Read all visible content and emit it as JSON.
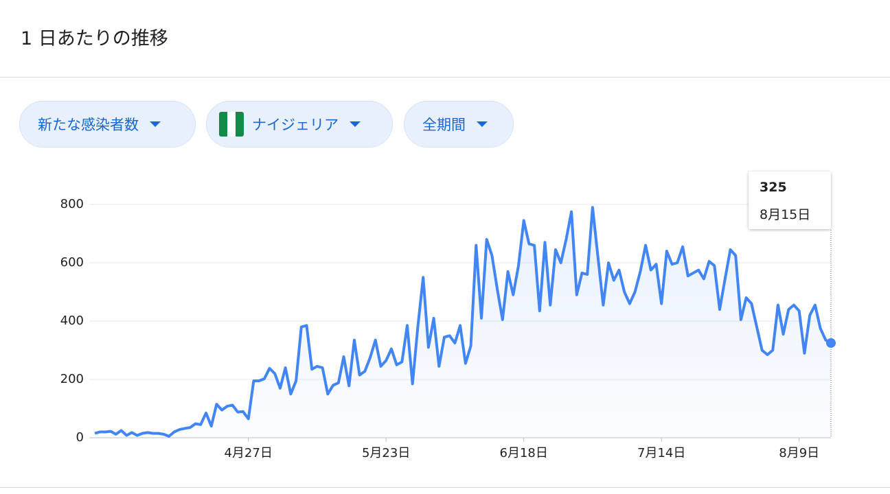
{
  "header": {
    "title": "1 日あたりの推移"
  },
  "filters": [
    {
      "label": "新たな感染者数"
    },
    {
      "label": "ナイジェリア"
    },
    {
      "label": "全期間"
    }
  ],
  "chart_data": {
    "type": "area",
    "color": "#4285f4",
    "grid": true,
    "ylim": [
      0,
      800
    ],
    "yticks": [
      0,
      200,
      400,
      600,
      800
    ],
    "categories": [
      null,
      null,
      null,
      null,
      null,
      null,
      null,
      null,
      null,
      null,
      null,
      null,
      null,
      null,
      null,
      null,
      null,
      null,
      null,
      null,
      null,
      null,
      null,
      null,
      null,
      null,
      null,
      null,
      null,
      "4月27日",
      null,
      null,
      null,
      null,
      null,
      null,
      null,
      null,
      null,
      null,
      null,
      null,
      null,
      null,
      null,
      null,
      null,
      null,
      null,
      null,
      null,
      null,
      null,
      null,
      null,
      "5月23日",
      null,
      null,
      null,
      null,
      null,
      null,
      null,
      null,
      null,
      null,
      null,
      null,
      null,
      null,
      null,
      null,
      null,
      null,
      null,
      null,
      null,
      null,
      null,
      null,
      null,
      "6月18日",
      null,
      null,
      null,
      null,
      null,
      null,
      null,
      null,
      null,
      null,
      null,
      null,
      null,
      null,
      null,
      null,
      null,
      null,
      null,
      null,
      null,
      null,
      null,
      null,
      null,
      "7月14日",
      null,
      null,
      null,
      null,
      null,
      null,
      null,
      null,
      null,
      null,
      null,
      null,
      null,
      null,
      null,
      null,
      null,
      null,
      null,
      null,
      null,
      null,
      null,
      null,
      null,
      "8月9日",
      null,
      null,
      null,
      null,
      null,
      null
    ],
    "values": [
      15,
      20,
      20,
      22,
      12,
      25,
      8,
      18,
      8,
      15,
      18,
      15,
      15,
      12,
      5,
      20,
      28,
      32,
      35,
      48,
      45,
      85,
      40,
      115,
      95,
      108,
      112,
      88,
      90,
      65,
      195,
      195,
      202,
      238,
      220,
      170,
      240,
      150,
      195,
      380,
      385,
      235,
      245,
      240,
      150,
      180,
      188,
      278,
      178,
      335,
      215,
      228,
      275,
      335,
      245,
      265,
      305,
      250,
      260,
      385,
      185,
      380,
      550,
      310,
      410,
      245,
      345,
      350,
      325,
      385,
      255,
      315,
      660,
      410,
      680,
      625,
      510,
      405,
      570,
      490,
      590,
      745,
      665,
      660,
      435,
      670,
      455,
      645,
      600,
      680,
      775,
      490,
      565,
      560,
      790,
      620,
      455,
      600,
      540,
      575,
      500,
      460,
      500,
      570,
      660,
      575,
      595,
      460,
      640,
      595,
      600,
      655,
      555,
      565,
      575,
      545,
      605,
      590,
      440,
      545,
      645,
      625,
      405,
      480,
      460,
      380,
      300,
      285,
      300,
      455,
      355,
      440,
      455,
      435,
      290,
      420,
      455,
      375,
      335,
      325
    ],
    "tooltip": {
      "value": 325,
      "label": "8月15日"
    }
  }
}
